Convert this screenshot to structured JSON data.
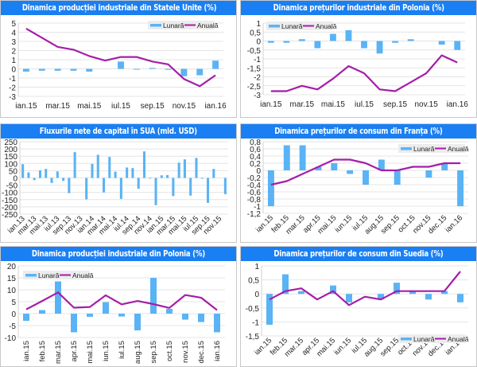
{
  "colors": {
    "header": "#1a7ff2",
    "bar": "#5ab3f5",
    "line": "#a51ea8",
    "grid": "#e4e4e4",
    "legend_bg": "#ececec"
  },
  "legend": {
    "monthly": "Lunară",
    "annual": "Anuală"
  },
  "chart_data": [
    {
      "id": "us-industrial-production",
      "type": "bar+line",
      "title": "Dinamica producției industriale din Statele Unite (%)",
      "categories": [
        "ian.15",
        "feb.15",
        "mar.15",
        "apr.15",
        "mai.15",
        "iun.15",
        "iul.15",
        "aug.15",
        "sep.15",
        "oct.15",
        "nov.15",
        "dec.15",
        "ian.16"
      ],
      "tick_labels": [
        "ian.15",
        "",
        "mar.15",
        "",
        "mai.15",
        "",
        "iul.15",
        "",
        "sep.15",
        "",
        "nov.15",
        "",
        "ian.16"
      ],
      "series": [
        {
          "name": "Lunară",
          "kind": "bar",
          "values": [
            -0.3,
            -0.2,
            -0.2,
            -0.2,
            -0.3,
            0.0,
            0.8,
            -0.05,
            0.1,
            -0.1,
            -0.8,
            -0.7,
            0.9
          ]
        },
        {
          "name": "Anuală",
          "kind": "line",
          "values": [
            4.4,
            3.4,
            2.4,
            2.1,
            1.4,
            0.9,
            1.3,
            1.3,
            0.8,
            0.5,
            -1.1,
            -1.9,
            -0.7
          ]
        }
      ],
      "ylim": [
        -3,
        5
      ],
      "yticks": [
        -3,
        -2,
        -1,
        0,
        1,
        2,
        3,
        4,
        5
      ],
      "tick_rotation": 0,
      "legend_position": "top-right"
    },
    {
      "id": "poland-industrial-prices",
      "type": "bar+line",
      "title": "Dinamica prețurilor industriale din Polonia (%)",
      "categories": [
        "ian.15",
        "feb.15",
        "mar.15",
        "apr.15",
        "mai.15",
        "iun.15",
        "iul.15",
        "aug.15",
        "sep.15",
        "oct.15",
        "nov.15",
        "dec.15",
        "ian.16"
      ],
      "tick_labels": [
        "ian.15",
        "",
        "mar.15",
        "",
        "mai.15",
        "",
        "iul.15",
        "",
        "sep.15",
        "",
        "nov.15",
        "",
        "ian.16"
      ],
      "series": [
        {
          "name": "Lunară",
          "kind": "bar",
          "values": [
            -0.1,
            -0.1,
            0.1,
            -0.4,
            0.4,
            0.6,
            -0.4,
            -0.7,
            -0.1,
            0.1,
            0.0,
            -0.2,
            -0.5
          ]
        },
        {
          "name": "Anuală",
          "kind": "line",
          "values": [
            -2.8,
            -2.8,
            -2.5,
            -2.7,
            -2.1,
            -1.4,
            -1.8,
            -2.7,
            -2.8,
            -2.3,
            -1.8,
            -0.8,
            -1.2
          ]
        }
      ],
      "ylim": [
        -3,
        1
      ],
      "yticks": [
        -3,
        -2.5,
        -2,
        -1.5,
        -1,
        -0.5,
        0,
        0.5,
        1
      ],
      "ytick_labels": [
        "-3",
        "-2,5",
        "-2",
        "-1,5",
        "-1",
        "-0,5",
        "0",
        "0,5",
        "1"
      ],
      "tick_rotation": 0,
      "legend_position": "top-left"
    },
    {
      "id": "us-net-capital-flows",
      "type": "bar",
      "title": "Fluxurile nete de capital în SUA (mld. USD)",
      "categories": [
        "ian.13",
        "feb.13",
        "mar.13",
        "apr.13",
        "mai.13",
        "iun.13",
        "iul.13",
        "aug.13",
        "sep.13",
        "oct.13",
        "nov.13",
        "dec.13",
        "ian.14",
        "feb.14",
        "mar.14",
        "apr.14",
        "mai.14",
        "iun.14",
        "iul.14",
        "aug.14",
        "sep.14",
        "oct.14",
        "nov.14",
        "dec.14",
        "ian.15",
        "feb.15",
        "mar.15",
        "apr.15",
        "mai.15",
        "iun.15",
        "iul.15",
        "aug.15",
        "sep.15",
        "oct.15",
        "nov.15",
        "dec.15"
      ],
      "tick_labels": [
        "ian.13",
        "",
        "mar.13",
        "",
        "mai.13",
        "",
        "iul.13",
        "",
        "sep.13",
        "",
        "nov.13",
        "",
        "ian.14",
        "",
        "mar.14",
        "",
        "mai.14",
        "",
        "iul.14",
        "",
        "sep.14",
        "",
        "nov.14",
        "",
        "ian.15",
        "",
        "mar.15",
        "",
        "mai.15",
        "",
        "iul.15",
        "",
        "sep.15",
        "",
        "nov.15",
        ""
      ],
      "series": [
        {
          "name": "Fluxuri nete",
          "kind": "bar",
          "values": [
            95,
            38,
            -15,
            52,
            62,
            -35,
            45,
            -20,
            -105,
            178,
            0,
            -148,
            97,
            160,
            -100,
            145,
            43,
            -145,
            72,
            68,
            -75,
            183,
            2,
            -188,
            18,
            20,
            -125,
            105,
            128,
            -122,
            138,
            -5,
            -172,
            62,
            0,
            -112
          ]
        }
      ],
      "ylim": [
        -250,
        250
      ],
      "yticks": [
        -250,
        -200,
        -150,
        -100,
        -50,
        0,
        50,
        100,
        150,
        200,
        250
      ],
      "tick_rotation": -45,
      "legend_position": "none"
    },
    {
      "id": "france-consumer-prices",
      "type": "bar+line",
      "title": "Dinamica prețurilor de consum din Franța (%)",
      "categories": [
        "ian.15",
        "feb.15",
        "mar.15",
        "apr.15",
        "mai.15",
        "iun.15",
        "iul.15",
        "aug.15",
        "sep.15",
        "oct.15",
        "nov.15",
        "dec.15",
        "ian.16"
      ],
      "tick_labels": [
        "ian.15",
        "feb.15",
        "mar.15",
        "apr.15",
        "mai.15",
        "iun.15",
        "iul.15",
        "aug.15",
        "sep.15",
        "oct.15",
        "nov.15",
        "dec.15",
        "ian.16"
      ],
      "series": [
        {
          "name": "Lunară",
          "kind": "bar",
          "values": [
            -1.0,
            0.7,
            0.7,
            0.1,
            0.2,
            -0.1,
            -0.4,
            0.3,
            -0.4,
            0.0,
            -0.2,
            0.2,
            -1.0
          ]
        },
        {
          "name": "Anuală",
          "kind": "line",
          "values": [
            -0.4,
            -0.3,
            -0.1,
            0.1,
            0.3,
            0.3,
            0.2,
            0.0,
            0.0,
            0.1,
            0.1,
            0.2,
            0.2
          ]
        }
      ],
      "ylim": [
        -1.2,
        0.8
      ],
      "yticks": [
        -1.2,
        -1,
        -0.8,
        -0.6,
        -0.4,
        -0.2,
        0,
        0.2,
        0.4,
        0.6,
        0.8
      ],
      "ytick_labels": [
        "-1,2",
        "-1",
        "-0,8",
        "-0,6",
        "-0,4",
        "-0,2",
        "0",
        "0,2",
        "0,4",
        "0,6",
        "0,8"
      ],
      "tick_rotation": -45,
      "legend_position": "top-right"
    },
    {
      "id": "poland-industrial-production",
      "type": "bar+line",
      "title": "Dinamica producției industriale din Polonia (%)",
      "categories": [
        "ian.15",
        "feb.15",
        "mar.15",
        "apr.15",
        "mai.15",
        "iun.15",
        "iul.15",
        "aug.15",
        "sep.15",
        "oct.15",
        "nov.15",
        "dec.15",
        "ian.16"
      ],
      "tick_labels": [
        "ian.15",
        "feb.15",
        "mar.15",
        "apr.15",
        "mai.15",
        "iun.15",
        "iul.15",
        "aug.15",
        "sep.15",
        "oct.15",
        "nov.15",
        "dec.15",
        "ian.16"
      ],
      "series": [
        {
          "name": "Lunară",
          "kind": "bar",
          "values": [
            -3.0,
            1.5,
            13.5,
            -7.8,
            -1.3,
            4.8,
            -1.2,
            -7.0,
            15.0,
            2.0,
            -2.5,
            -3.5,
            -7.8
          ]
        },
        {
          "name": "Anuală",
          "kind": "line",
          "values": [
            1.8,
            5.3,
            8.9,
            2.5,
            2.8,
            7.7,
            3.9,
            5.3,
            4.0,
            2.4,
            7.8,
            6.7,
            1.5
          ]
        }
      ],
      "ylim": [
        -10,
        20
      ],
      "yticks": [
        -10,
        -5,
        0,
        5,
        10,
        15,
        20
      ],
      "tick_rotation": -90,
      "legend_position": "top-left"
    },
    {
      "id": "sweden-consumer-prices",
      "type": "bar+line",
      "title": "Dinamica prețurilor de consum din Suedia (%)",
      "categories": [
        "ian.15",
        "feb.15",
        "mar.15",
        "apr.15",
        "mai.15",
        "iun.15",
        "iul.15",
        "aug.15",
        "sep.15",
        "oct.15",
        "nov.15",
        "dec.15",
        "ian.16"
      ],
      "tick_labels": [
        "ian.15",
        "feb.15",
        "mar.15",
        "apr.15",
        "mai.15",
        "iun.15",
        "iul.15",
        "aug.15",
        "sep.15",
        "oct.15",
        "nov.15",
        "dec.15",
        "ian.16"
      ],
      "series": [
        {
          "name": "Lunară",
          "kind": "bar",
          "values": [
            -1.1,
            0.7,
            0.1,
            0.0,
            0.3,
            -0.3,
            0.0,
            -0.2,
            0.4,
            0.1,
            -0.2,
            0.1,
            -0.3
          ]
        },
        {
          "name": "Anuală",
          "kind": "line",
          "values": [
            -0.2,
            0.1,
            0.2,
            -0.2,
            0.1,
            -0.4,
            -0.1,
            -0.2,
            0.1,
            0.1,
            0.1,
            0.1,
            0.8
          ]
        }
      ],
      "ylim": [
        -1.5,
        1
      ],
      "yticks": [
        -1.5,
        -1,
        -0.5,
        0,
        0.5,
        1
      ],
      "ytick_labels": [
        "-1,5",
        "-1",
        "-0,5",
        "0",
        "0,5",
        "1"
      ],
      "tick_rotation": -45,
      "legend_position": "bottom-right"
    }
  ]
}
